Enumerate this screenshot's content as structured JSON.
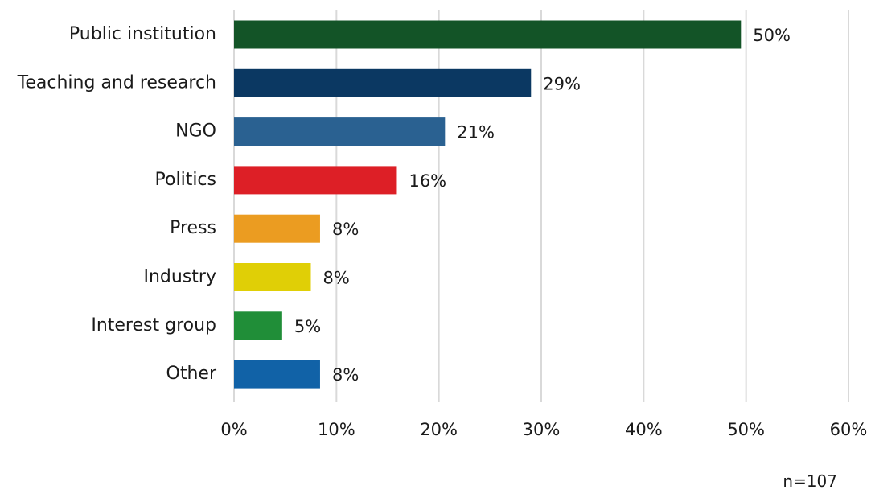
{
  "chart_data": {
    "type": "bar",
    "orientation": "horizontal",
    "categories": [
      "Public institution",
      "Teaching and research",
      "NGO",
      "Politics",
      "Press",
      "Industry",
      "Interest group",
      "Other"
    ],
    "values": [
      49.5,
      29.0,
      20.6,
      15.9,
      8.4,
      7.5,
      4.7,
      8.4
    ],
    "value_labels": [
      "50%",
      "29%",
      "21%",
      "16%",
      "8%",
      "8%",
      "5%",
      "8%"
    ],
    "colors": [
      "#135427",
      "#0b3862",
      "#2a6191",
      "#dd1f26",
      "#eb9c21",
      "#e0cf06",
      "#208e38",
      "#1162a7"
    ],
    "xlim": [
      0,
      60
    ],
    "x_ticks": [
      0,
      10,
      20,
      30,
      40,
      50,
      60
    ],
    "x_tick_labels": [
      "0%",
      "10%",
      "20%",
      "30%",
      "40%",
      "50%",
      "60%"
    ],
    "grid": true,
    "legend": "none"
  },
  "note": "n=107"
}
